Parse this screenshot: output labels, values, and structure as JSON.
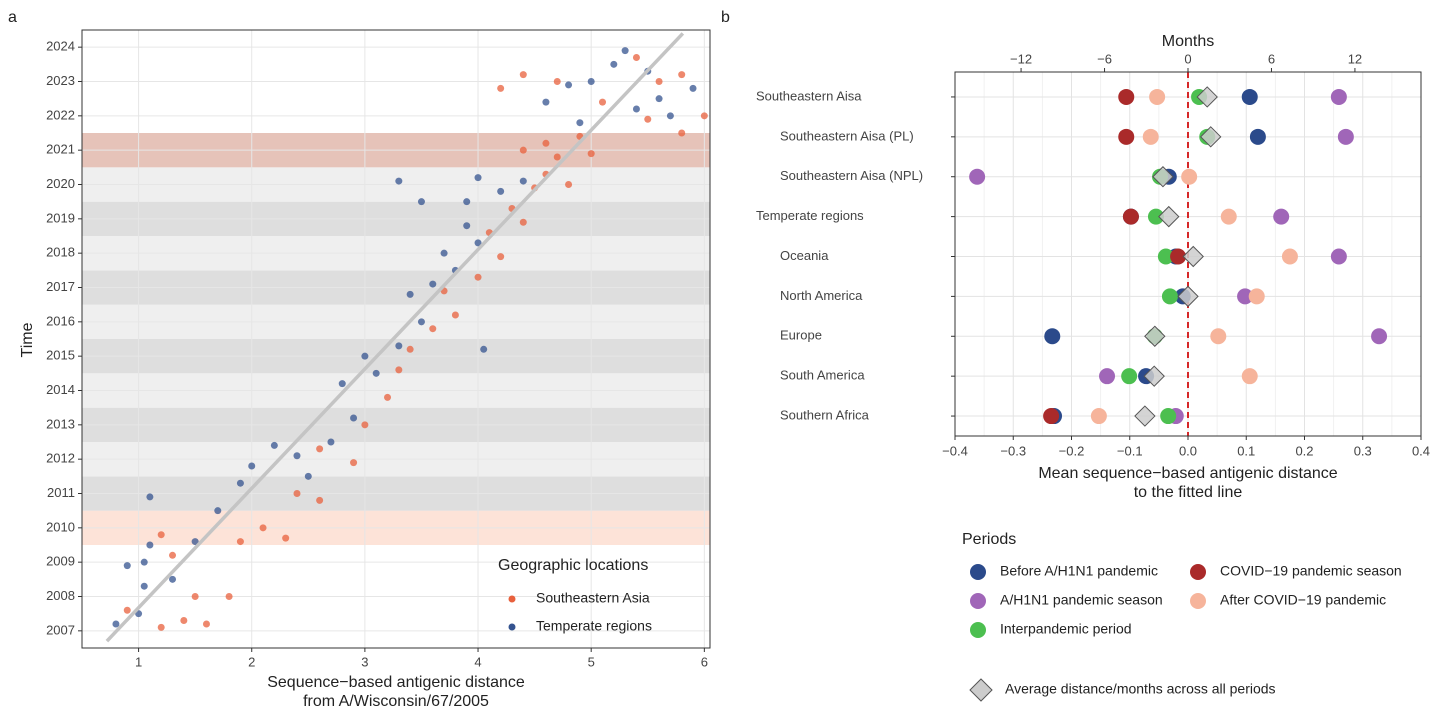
{
  "chart_data": [
    {
      "type": "scatter",
      "panel_label": "a",
      "xlabel": [
        "Sequence−based antigenic distance",
        "from A/Wisconsin/67/2005"
      ],
      "ylabel": "Time",
      "xlim": [
        0.5,
        6.05
      ],
      "ylim": [
        2006.5,
        2024.5
      ],
      "xticks": [
        1,
        2,
        3,
        4,
        5,
        6
      ],
      "yticks": [
        2007,
        2008,
        2009,
        2010,
        2011,
        2012,
        2013,
        2014,
        2015,
        2016,
        2017,
        2018,
        2019,
        2020,
        2021,
        2022,
        2023,
        2024
      ],
      "grid": true,
      "legend_title": "Geographic locations",
      "bands": [
        {
          "range": [
            2009.5,
            2010.5
          ],
          "color": "#fde3d8"
        },
        {
          "range": [
            2010.5,
            2011.5
          ],
          "color": "#dedede"
        },
        {
          "range": [
            2011.5,
            2012.5
          ],
          "color": "#efefef"
        },
        {
          "range": [
            2012.5,
            2013.5
          ],
          "color": "#dedede"
        },
        {
          "range": [
            2013.5,
            2014.5
          ],
          "color": "#efefef"
        },
        {
          "range": [
            2014.5,
            2015.5
          ],
          "color": "#dedede"
        },
        {
          "range": [
            2015.5,
            2016.5
          ],
          "color": "#efefef"
        },
        {
          "range": [
            2016.5,
            2017.5
          ],
          "color": "#dedede"
        },
        {
          "range": [
            2017.5,
            2018.5
          ],
          "color": "#efefef"
        },
        {
          "range": [
            2018.5,
            2019.5
          ],
          "color": "#dedede"
        },
        {
          "range": [
            2019.5,
            2020.5
          ],
          "color": "#efefef"
        },
        {
          "range": [
            2020.5,
            2021.5
          ],
          "color": "#e6c3b9"
        }
      ],
      "fit_line": {
        "x": [
          0.72,
          5.81
        ],
        "y": [
          2006.7,
          2024.4
        ],
        "color": "#c4c4c4"
      },
      "series": [
        {
          "name": "Southeastern Asia",
          "color": "#e8603c",
          "x": [
            0.9,
            1.2,
            1.4,
            1.6,
            1.3,
            1.2,
            1.5,
            1.8,
            1.9,
            2.1,
            2.3,
            2.6,
            2.4,
            2.9,
            2.6,
            3.0,
            3.2,
            3.3,
            3.4,
            3.6,
            3.8,
            3.7,
            4.0,
            4.2,
            4.1,
            4.4,
            4.3,
            4.5,
            4.6,
            4.8,
            4.4,
            4.6,
            4.7,
            4.9,
            5.0,
            4.2,
            4.4,
            4.7,
            5.1,
            5.4,
            5.6,
            5.8,
            6.0,
            5.5,
            5.8
          ],
          "y": [
            2007.6,
            2007.1,
            2007.3,
            2007.2,
            2009.2,
            2009.8,
            2008.0,
            2008.0,
            2009.6,
            2010.0,
            2009.7,
            2010.8,
            2011.0,
            2011.9,
            2012.3,
            2013.0,
            2013.8,
            2014.6,
            2015.2,
            2015.8,
            2016.2,
            2016.9,
            2017.3,
            2017.9,
            2018.6,
            2018.9,
            2019.3,
            2019.9,
            2020.3,
            2020.0,
            2021.0,
            2021.2,
            2020.8,
            2021.4,
            2020.9,
            2022.8,
            2023.2,
            2023.0,
            2022.4,
            2023.7,
            2023.0,
            2023.2,
            2022.0,
            2021.9,
            2021.5
          ]
        },
        {
          "name": "Temperate regions",
          "color": "#34538f",
          "x": [
            0.8,
            1.0,
            1.05,
            1.05,
            1.1,
            0.9,
            1.3,
            1.5,
            1.1,
            1.7,
            1.9,
            2.0,
            2.2,
            2.4,
            2.5,
            2.7,
            2.9,
            2.8,
            3.1,
            3.0,
            3.3,
            3.5,
            3.4,
            3.6,
            3.8,
            3.7,
            4.0,
            3.9,
            3.5,
            3.9,
            4.2,
            4.4,
            4.0,
            3.3,
            4.05,
            4.6,
            4.8,
            5.0,
            5.2,
            5.3,
            5.5,
            5.7,
            5.6,
            5.9,
            4.9,
            5.4
          ],
          "y": [
            2007.2,
            2007.5,
            2008.3,
            2009.0,
            2009.5,
            2008.9,
            2008.5,
            2009.6,
            2010.9,
            2010.5,
            2011.3,
            2011.8,
            2012.4,
            2012.1,
            2011.5,
            2012.5,
            2013.2,
            2014.2,
            2014.5,
            2015.0,
            2015.3,
            2016.0,
            2016.8,
            2017.1,
            2017.5,
            2018.0,
            2018.3,
            2018.8,
            2019.5,
            2019.5,
            2019.8,
            2020.1,
            2020.2,
            2020.1,
            2015.2,
            2022.4,
            2022.9,
            2023.0,
            2023.5,
            2023.9,
            2023.3,
            2022.0,
            2022.5,
            2022.8,
            2021.8,
            2022.2
          ]
        }
      ]
    },
    {
      "type": "dot",
      "panel_label": "b",
      "xlabel": [
        "Mean sequence−based antigenic distance",
        "to the fitted line"
      ],
      "x2label": "Months",
      "xlim": [
        -0.4,
        0.4
      ],
      "x2lim": [
        -16.75,
        16.75
      ],
      "xticks": [
        {
          "value": -0.4,
          "label": "−0.4"
        },
        {
          "value": -0.3,
          "label": "−0.3"
        },
        {
          "value": -0.2,
          "label": "−0.2"
        },
        {
          "value": -0.1,
          "label": "−0.1"
        },
        {
          "value": 0,
          "label": "0.0"
        },
        0.1,
        0.2,
        0.3,
        0.4
      ],
      "x2ticks": [
        {
          "value": -12,
          "label": "−12"
        },
        {
          "value": -6,
          "label": "−6"
        },
        0,
        6,
        12
      ],
      "grid": true,
      "reference_line": {
        "value": 0,
        "color": "#d62728"
      },
      "categories": [
        "Southeastern Aisa",
        "Southeastern Aisa (PL)",
        "Southeastern Aisa (NPL)",
        "Temperate regions",
        "Oceania",
        "North America",
        "Europe",
        "South America",
        "Southern Africa"
      ],
      "legend_title": "Periods",
      "series": [
        {
          "name": "Before A/H1N1 pandemic",
          "color": "#2b4a8b",
          "values": [
            0.106,
            0.12,
            -0.033,
            -0.098,
            -0.021,
            -0.009,
            -0.233,
            -0.072,
            -0.23
          ]
        },
        {
          "name": "A/H1N1 pandemic season",
          "color": "#a066b8",
          "values": [
            0.259,
            0.271,
            -0.362,
            0.16,
            0.259,
            0.098,
            0.328,
            -0.139,
            -0.021
          ]
        },
        {
          "name": "Interpandemic period",
          "color": "#4cbf50",
          "values": [
            0.019,
            0.033,
            -0.048,
            -0.055,
            -0.038,
            -0.031,
            -0.057,
            -0.101,
            -0.034
          ]
        },
        {
          "name": "COVID−19 pandemic season",
          "color": "#aa2a2a",
          "values": [
            -0.106,
            -0.106,
            null,
            -0.098,
            -0.017,
            null,
            null,
            null,
            -0.235
          ]
        },
        {
          "name": "After COVID−19 pandemic",
          "color": "#f6b49b",
          "values": [
            -0.053,
            -0.064,
            0.002,
            0.07,
            0.175,
            0.118,
            0.052,
            0.106,
            -0.153
          ]
        }
      ],
      "average": {
        "name": "Average distance/months across all periods",
        "color": "#cccccc",
        "values": [
          0.033,
          0.039,
          -0.043,
          -0.033,
          0.009,
          0.0,
          -0.057,
          -0.058,
          -0.074
        ]
      }
    }
  ]
}
